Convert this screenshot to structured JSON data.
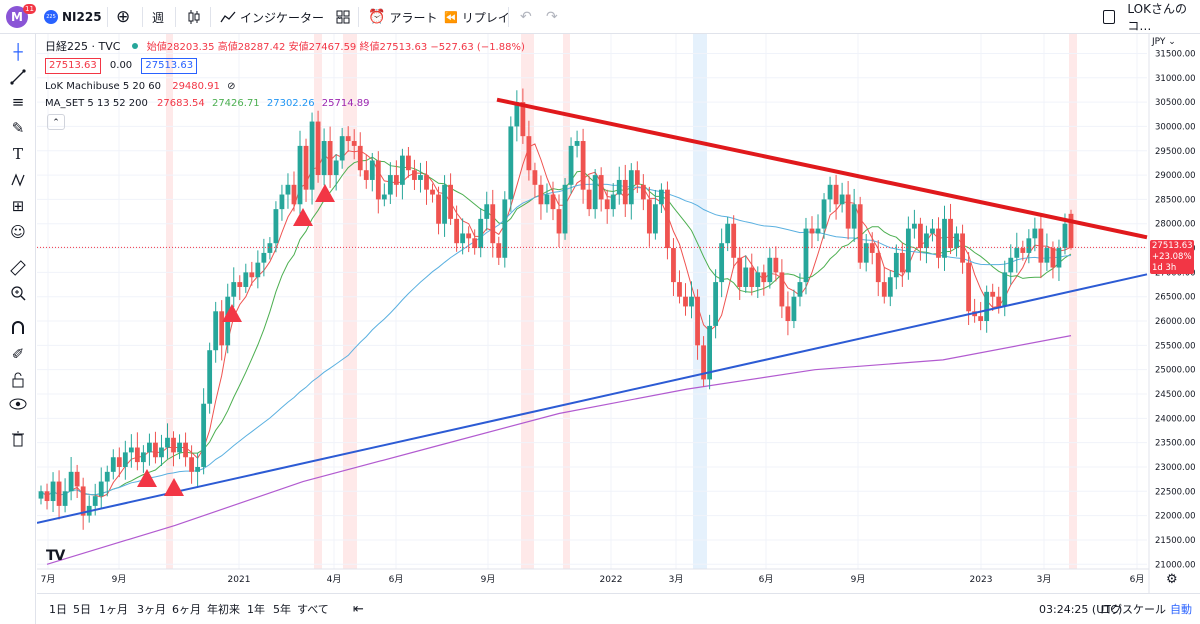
{
  "toolbar": {
    "avatar_letter": "M",
    "avatar_badge": "11",
    "symbol_badge": "225",
    "symbol": "NI225",
    "interval": "週",
    "indicators": "インジケーター",
    "alert": "アラート",
    "replay": "リプレイ",
    "workspace": "LOKさんのコ…",
    "icons": [
      "plus-circle-icon",
      "candles-icon",
      "indicators-icon",
      "chevron-down-icon",
      "layouts-icon",
      "alarm-icon",
      "replay-icon",
      "undo-icon",
      "redo-icon",
      "checkbox-icon"
    ]
  },
  "left_tools": [
    "crosshair-icon",
    "trendline-icon",
    "fib-icon",
    "brush-icon",
    "text-icon",
    "pattern-icon",
    "measure-icon",
    "emoji-icon",
    "ruler-icon",
    "zoom-icon",
    "magnet-icon",
    "pencil-lock-icon",
    "lock-icon",
    "eye-icon",
    "trash-icon"
  ],
  "legend": {
    "title": "日経225 · TVC",
    "ohlc": "始値28203.35 高値28287.42 安値27467.59 終値27513.63 −527.63 (−1.88%)",
    "bid": "27513.63",
    "spread": "0.00",
    "ask": "27513.63",
    "ind1_name": "LoK Machibuse 5 20 60",
    "ind1_value": "29480.91",
    "ind2_name": "MA_SET 5 13 52 200",
    "ind2_v1": "27683.54",
    "ind2_v2": "27426.71",
    "ind2_v3": "27302.26",
    "ind2_v4": "25714.89",
    "collapse": "⌃"
  },
  "price_tag": {
    "price": "27513.63",
    "change": "+23.08%",
    "countdown": "1d 3h"
  },
  "currency": "JPY",
  "bottom": {
    "ranges": [
      "1日",
      "5日",
      "1ヶ月",
      "3ヶ月",
      "6ヶ月",
      "年初来",
      "1年",
      "5年",
      "すべて"
    ],
    "time": "03:24:25 (UTC)",
    "log": "ログスケール",
    "auto": "自動",
    "logo": "TV"
  },
  "colors": {
    "up": "#26a69a",
    "down": "#ef5350",
    "trend_red": "#e0191c",
    "trend_blue": "#2c5bd4",
    "ma5": "#ef5350",
    "ma13": "#4caf50",
    "ma52": "#5ab0e0",
    "ma200": "#b25bd0",
    "accent": "#2962ff"
  },
  "chart_data": {
    "type": "candlestick",
    "title": "日経225 · TVC",
    "interval": "週",
    "x_tick_labels": [
      "7月",
      "9月",
      "2021",
      "4月",
      "6月",
      "9月",
      "2022",
      "3月",
      "6月",
      "9月",
      "2023",
      "3月",
      "6月"
    ],
    "y_tick_labels": [
      "21000.00",
      "21500.00",
      "22000.00",
      "22500.00",
      "23000.00",
      "23500.00",
      "24000.00",
      "24500.00",
      "25000.00",
      "25500.00",
      "26000.00",
      "26500.00",
      "27000.00",
      "27500.00",
      "28000.00",
      "28500.00",
      "29000.00",
      "29500.00",
      "30000.00",
      "30500.00",
      "31000.00",
      "31500.00"
    ],
    "ylim": [
      20800,
      31900
    ],
    "weekly_close_approx": [
      22500,
      22300,
      22700,
      22200,
      22500,
      22900,
      22600,
      22000,
      22200,
      22400,
      22700,
      22900,
      23200,
      23000,
      23300,
      23400,
      23100,
      23300,
      23500,
      23200,
      23400,
      23600,
      23300,
      23500,
      23200,
      22900,
      23000,
      24300,
      25400,
      26200,
      25500,
      26500,
      26800,
      26700,
      27000,
      26900,
      27200,
      27400,
      27600,
      28300,
      28600,
      28800,
      28400,
      29600,
      28700,
      30100,
      29000,
      29700,
      29000,
      29300,
      29800,
      29700,
      29600,
      29100,
      28900,
      29300,
      28500,
      28600,
      29000,
      28800,
      29400,
      29100,
      28900,
      29000,
      28700,
      28600,
      28000,
      28800,
      28100,
      27600,
      27800,
      27700,
      27500,
      28100,
      28400,
      27600,
      27300,
      28500,
      30000,
      30500,
      29800,
      29100,
      28800,
      28400,
      28600,
      28300,
      27800,
      28800,
      29600,
      29700,
      28700,
      28300,
      29000,
      28500,
      28300,
      28600,
      28900,
      28400,
      29100,
      28800,
      28500,
      27800,
      28400,
      28700,
      27500,
      26800,
      26500,
      26300,
      26500,
      25500,
      24800,
      25900,
      26800,
      27600,
      28000,
      27300,
      26700,
      27100,
      26700,
      27000,
      26800,
      27300,
      27000,
      26300,
      26000,
      26500,
      26800,
      27900,
      27800,
      27900,
      28500,
      28800,
      28400,
      28600,
      27900,
      28400,
      27200,
      27600,
      27400,
      26800,
      26500,
      26900,
      27400,
      27000,
      27900,
      28000,
      27500,
      27800,
      27900,
      27300,
      28100,
      27500,
      27800,
      27200,
      26200,
      26100,
      26000,
      26600,
      26500,
      26300,
      27000,
      27300,
      27500,
      27400,
      27700,
      27900,
      27200,
      27500,
      27100,
      27500,
      28000,
      27500
    ],
    "last_close": 27513.63,
    "last_open": 28203.35,
    "last_high": 28287.42,
    "last_low": 27467.59,
    "series": [
      {
        "name": "MA 52",
        "approx": [
          22300,
          23000,
          24000,
          25500,
          27000,
          28200,
          28700,
          28800,
          28200,
          27800,
          27500,
          27400,
          27300
        ]
      },
      {
        "name": "MA 200",
        "approx": [
          21000,
          21800,
          22700,
          23400,
          24100,
          24600,
          25000,
          25200,
          25700
        ]
      }
    ],
    "trendlines": [
      {
        "name": "descending resistance",
        "from": [
          30550,
          "2021-09"
        ],
        "to": [
          27800,
          "2023-04"
        ]
      },
      {
        "name": "ascending support",
        "from": [
          21900,
          "2020-07"
        ],
        "to": [
          26900,
          "2023-06"
        ]
      }
    ],
    "markers": [
      "up-triangle",
      "up-triangle",
      "up-triangle",
      "up-triangle",
      "up-triangle"
    ]
  }
}
